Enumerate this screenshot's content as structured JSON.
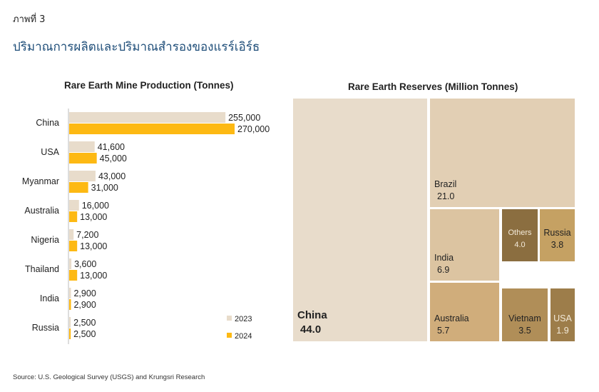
{
  "figure_label": "ภาพที่ 3",
  "title": "ปริมาณการผลิตและปริมาณสำรองของแรร์เอิร์ธ",
  "source": "Source: U.S. Geological Survey (USGS) and Krungsri Research",
  "chart_data": [
    {
      "type": "bar",
      "orientation": "horizontal",
      "title": "Rare Earth Mine Production (Tonnes)",
      "categories": [
        "China",
        "USA",
        "Myanmar",
        "Australia",
        "Nigeria",
        "Thailand",
        "India",
        "Russia"
      ],
      "series": [
        {
          "name": "2023",
          "color": "#e8dccb",
          "values": [
            255000,
            41600,
            43000,
            16000,
            7200,
            3600,
            2900,
            2500
          ],
          "labels": [
            "255,000",
            "41,600",
            "43,000",
            "16,000",
            "7,200",
            "3,600",
            "2,900",
            "2,500"
          ]
        },
        {
          "name": "2024",
          "color": "#fdb913",
          "values": [
            270000,
            45000,
            31000,
            13000,
            13000,
            13000,
            2900,
            2500
          ],
          "labels": [
            "270,000",
            "45,000",
            "31,000",
            "13,000",
            "13,000",
            "13,000",
            "2,900",
            "2,500"
          ]
        }
      ],
      "legend": "bottom-right",
      "grid": false
    },
    {
      "type": "treemap",
      "title": "Rare Earth Reserves (Million Tonnes)",
      "items": [
        {
          "name": "China",
          "value": "44.0",
          "color": "#e8dccb"
        },
        {
          "name": "Brazil",
          "value": "21.0",
          "color": "#e2cfb4"
        },
        {
          "name": "India",
          "value": "6.9",
          "color": "#dcc4a1"
        },
        {
          "name": "Australia",
          "value": "5.7",
          "color": "#d0ad7b"
        },
        {
          "name": "Others",
          "value": "4.0",
          "color": "#8b6e40"
        },
        {
          "name": "Russia",
          "value": "3.8",
          "color": "#c5a163"
        },
        {
          "name": "Vietnam",
          "value": "3.5",
          "color": "#b08e58"
        },
        {
          "name": "USA",
          "value": "1.9",
          "color": "#9d7d4a"
        }
      ]
    }
  ]
}
